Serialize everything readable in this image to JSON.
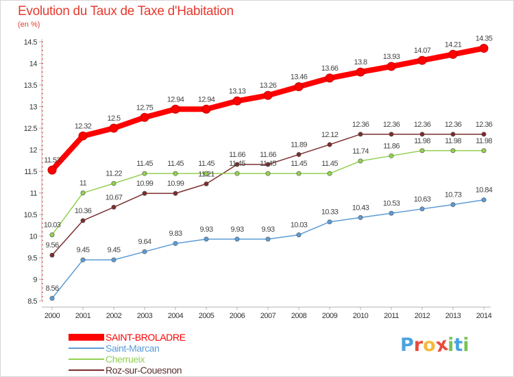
{
  "header": {
    "title": "Evolution du Taux de Taxe d'Habitation",
    "subtitle": "(en %)"
  },
  "brand": {
    "letters": [
      "P",
      "r",
      "o",
      "x",
      "i",
      "t",
      "i"
    ],
    "colors": [
      "#4aa3df",
      "#e94b3c",
      "#f6b93b",
      "#e94b3c",
      "#78c257",
      "#4aa3df",
      "#78c257"
    ]
  },
  "chart_data": {
    "type": "line",
    "title": "Evolution du Taux de Taxe d'Habitation",
    "subtitle": "(en %)",
    "x": [
      "2000",
      "2001",
      "2002",
      "2003",
      "2004",
      "2005",
      "2006",
      "2007",
      "2008",
      "2009",
      "2010",
      "2011",
      "2012",
      "2013",
      "2014"
    ],
    "ylim": [
      8.5,
      14.5
    ],
    "yticks": [
      "8.5",
      "9",
      "9.5",
      "10",
      "10.5",
      "11",
      "11.5",
      "12",
      "12.5",
      "13",
      "13.5",
      "14",
      "14.5"
    ],
    "grid": false,
    "legend_position": "bottom-left",
    "series": [
      {
        "name": "SAINT-BROLADRE",
        "color": "#ff0000",
        "values": [
          11.53,
          12.32,
          12.5,
          12.75,
          12.94,
          12.94,
          13.13,
          13.26,
          13.46,
          13.66,
          13.8,
          13.93,
          14.07,
          14.21,
          14.35
        ],
        "labels": [
          "11.53",
          "12.32",
          "12.5",
          "12.75",
          "12.94",
          "12.94",
          "13.13",
          "13.26",
          "13.46",
          "13.66",
          "13.8",
          "13.93",
          "14.07",
          "14.21",
          "14.35"
        ]
      },
      {
        "name": "Saint-Marcan",
        "color": "#5b9bd5",
        "values": [
          8.56,
          9.45,
          9.45,
          9.64,
          9.83,
          9.93,
          9.93,
          9.93,
          10.03,
          10.33,
          10.43,
          10.53,
          10.63,
          10.73,
          10.84
        ],
        "labels": [
          "8.56",
          "9.45",
          "9.45",
          "9.64",
          "9.83",
          "9.93",
          "9.93",
          "9.93",
          "10.03",
          "10.33",
          "10.43",
          "10.53",
          "10.63",
          "10.73",
          "10.84"
        ]
      },
      {
        "name": "Cherrueix",
        "color": "#92d050",
        "values": [
          10.03,
          11,
          11.22,
          11.45,
          11.45,
          11.45,
          11.45,
          11.45,
          11.45,
          11.45,
          11.74,
          11.86,
          11.98,
          11.98,
          11.98
        ],
        "labels": [
          "10.03",
          "11",
          "11.22",
          "11.45",
          "11.45",
          "11.45",
          "11.45",
          "11.45",
          "11.45",
          "11.45",
          "11.74",
          "11.86",
          "11.98",
          "11.98",
          "11.98"
        ]
      },
      {
        "name": "Roz-sur-Couesnon",
        "color": "#7b2d2d",
        "values": [
          9.56,
          10.36,
          10.67,
          10.99,
          10.99,
          11.21,
          11.66,
          11.66,
          11.89,
          12.12,
          12.36,
          12.36,
          12.36,
          12.36,
          12.36
        ],
        "labels": [
          "9.56",
          "10.36",
          "10.67",
          "10.99",
          "10.99",
          "11.21",
          "11.66",
          "11.66",
          "11.89",
          "12.12",
          "12.36",
          "12.36",
          "12.36",
          "12.36",
          "12.36"
        ]
      }
    ]
  }
}
